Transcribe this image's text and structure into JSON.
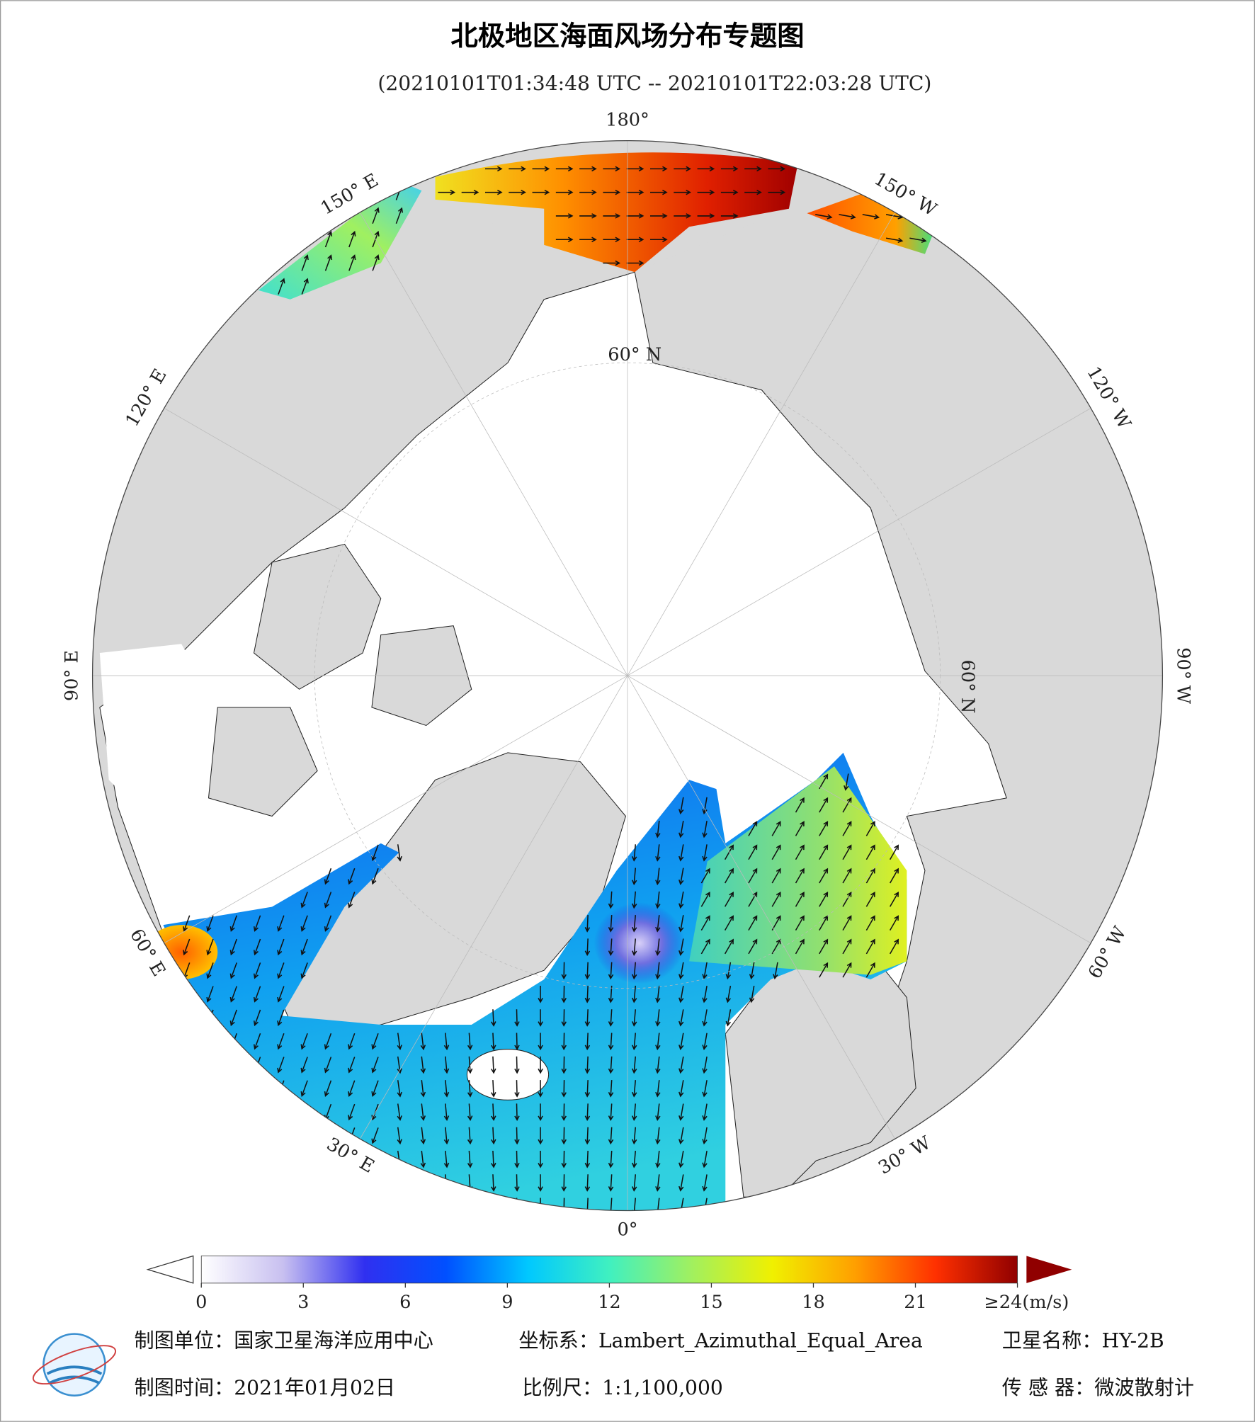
{
  "header": {
    "title": "北极地区海面风场分布专题图",
    "subtitle": "(20210101T01:34:48 UTC -- 20210101T22:03:28 UTC)"
  },
  "map": {
    "lon_labels": [
      "180°",
      "150° W",
      "120° W",
      "90° W",
      "60° W",
      "30° W",
      "0°",
      "30° E",
      "60° E",
      "90° E",
      "120° E",
      "150° E"
    ],
    "lat_labels": [
      "60° N",
      "60° N"
    ]
  },
  "colorbar": {
    "lim": [
      0,
      24
    ],
    "ticks": [
      0,
      3,
      6,
      9,
      12,
      15,
      18,
      21,
      {
        "value": 24,
        "label": "≥24(m/s)"
      }
    ],
    "colors": [
      "#ffffff",
      "#c8c0f0",
      "#3030f0",
      "#0050ff",
      "#00c8ff",
      "#40f0c0",
      "#a0f060",
      "#f0f000",
      "#ffa000",
      "#ff3000",
      "#900000"
    ]
  },
  "footer": {
    "unit": "制图单位：国家卫星海洋应用中心",
    "crs": "坐标系：Lambert_Azimuthal_Equal_Area",
    "satellite": "卫星名称：HY-2B",
    "date": "制图时间：2021年01月02日",
    "scale": "比例尺：1:1,100,000",
    "sensor": "传 感 器：微波散射计"
  }
}
